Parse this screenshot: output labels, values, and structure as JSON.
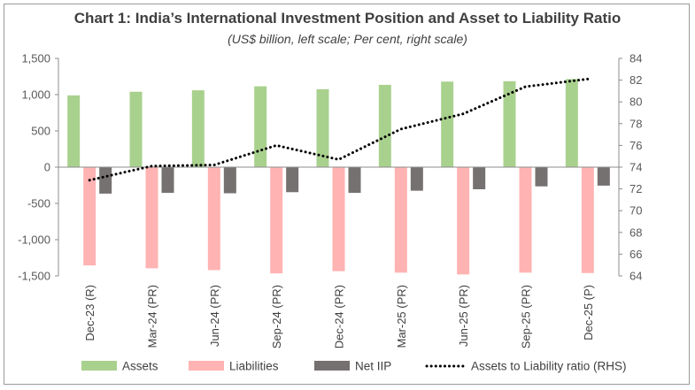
{
  "chart_data": {
    "type": "bar",
    "title": "Chart 1: India’s International Investment Position and Asset to Liability Ratio",
    "subtitle": "(US$ billion, left scale; Per cent, right scale)",
    "categories": [
      "Dec-23 (R)",
      "Mar-24 (PR)",
      "Jun-24 (PR)",
      "Sep-24 (PR)",
      "Dec-24 (PR)",
      "Mar-25 (PR)",
      "Jun-25 (PR)",
      "Sep-25 (PR)",
      "Dec-25 (P)"
    ],
    "series": [
      {
        "name": "Assets",
        "type": "bar",
        "axis": "left",
        "color": "#a9d18e",
        "values": [
          990,
          1040,
          1060,
          1115,
          1075,
          1135,
          1180,
          1185,
          1215
        ]
      },
      {
        "name": "Liabilities",
        "type": "bar",
        "axis": "left",
        "color": "#ffb3b3",
        "values": [
          -1355,
          -1395,
          -1420,
          -1465,
          -1435,
          -1455,
          -1480,
          -1455,
          -1460
        ]
      },
      {
        "name": "Net IIP",
        "type": "bar",
        "axis": "left",
        "color": "#767171",
        "values": [
          -365,
          -355,
          -360,
          -345,
          -355,
          -325,
          -305,
          -265,
          -255
        ]
      },
      {
        "name": "Assets to Liability ratio (RHS)",
        "type": "line",
        "axis": "right",
        "color": "#000000",
        "style": "dotted",
        "values": [
          72.8,
          74.1,
          74.2,
          76.0,
          74.7,
          77.5,
          78.9,
          81.4,
          82.1
        ]
      }
    ],
    "left_axis": {
      "min": -1500,
      "max": 1500,
      "ticks": [
        "-1,500",
        "-1,000",
        "-500",
        "0",
        "500",
        "1,000",
        "1,500"
      ]
    },
    "right_axis": {
      "min": 64,
      "max": 84,
      "ticks": [
        "64",
        "66",
        "68",
        "70",
        "72",
        "74",
        "76",
        "78",
        "80",
        "82",
        "84"
      ]
    },
    "legend_position": "bottom",
    "grid": false
  }
}
